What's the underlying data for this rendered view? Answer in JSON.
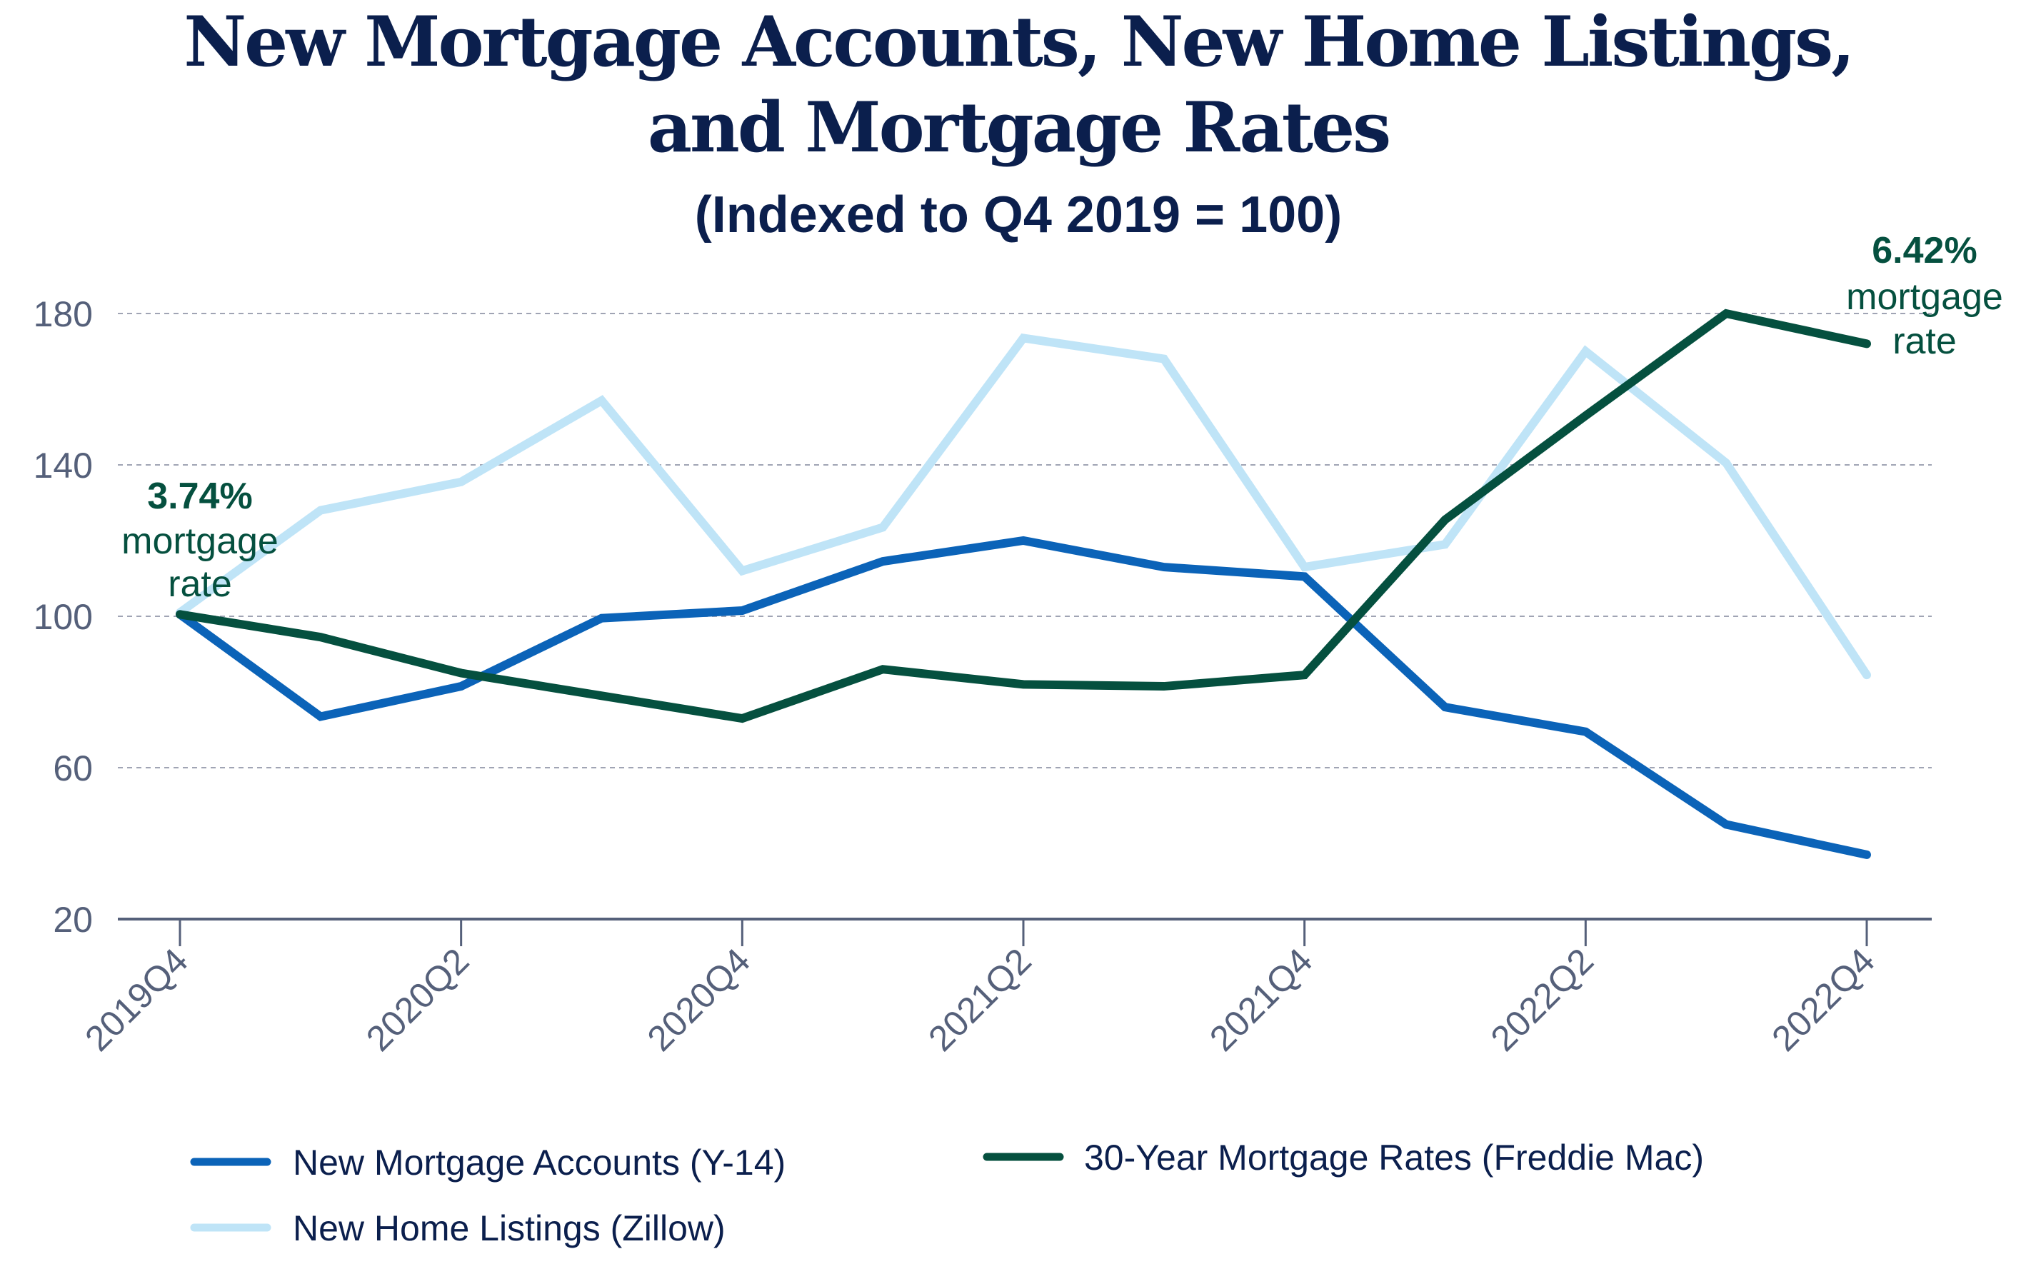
{
  "chart_data": {
    "type": "line",
    "title": "New Mortgage Accounts, New Home Listings, and Mortgage Rates",
    "title_lines": [
      "New Mortgage Accounts, New Home Listings,",
      "and Mortgage Rates"
    ],
    "subtitle": "(Indexed to Q4 2019 = 100)",
    "xlabel": "",
    "ylabel": "",
    "x": [
      "2019Q4",
      "2020Q1",
      "2020Q2",
      "2020Q3",
      "2020Q4",
      "2021Q1",
      "2021Q2",
      "2021Q3",
      "2021Q4",
      "2022Q1",
      "2022Q2",
      "2022Q3",
      "2022Q4"
    ],
    "x_tick_labels": [
      "2019Q4",
      "2020Q2",
      "2020Q4",
      "2021Q2",
      "2021Q4",
      "2022Q2",
      "2022Q4"
    ],
    "y_ticks": [
      20,
      60,
      100,
      140,
      180
    ],
    "ylim": [
      20,
      180
    ],
    "grid": "horizontal dashed",
    "legend_position": "bottom",
    "series": [
      {
        "name": "New Mortgage Accounts (Y-14)",
        "color": "#0b63b8",
        "values": [
          100.5,
          73.5,
          81.5,
          99.5,
          101.5,
          114.5,
          120,
          113,
          110.5,
          76,
          69.5,
          45,
          37
        ]
      },
      {
        "name": "New Home Listings (Zillow)",
        "color": "#bfe4f7",
        "values": [
          101,
          128,
          135.5,
          157,
          112,
          123.5,
          173.5,
          168,
          113,
          119,
          170,
          140.5,
          84.5
        ]
      },
      {
        "name": "30-Year Mortgage Rates (Freddie Mac)",
        "color": "#05503f",
        "values": [
          100.5,
          94.5,
          85,
          79,
          73,
          86,
          82,
          81.5,
          84.5,
          125.5,
          153,
          180,
          172
        ]
      }
    ],
    "legend_order": [
      0,
      2,
      1
    ],
    "annotations": [
      {
        "value": "3.74%",
        "text": [
          "mortgage",
          "rate"
        ],
        "at": "2019Q4"
      },
      {
        "value": "6.42%",
        "text": [
          "mortgage",
          "rate"
        ],
        "at": "2022Q4"
      }
    ]
  }
}
